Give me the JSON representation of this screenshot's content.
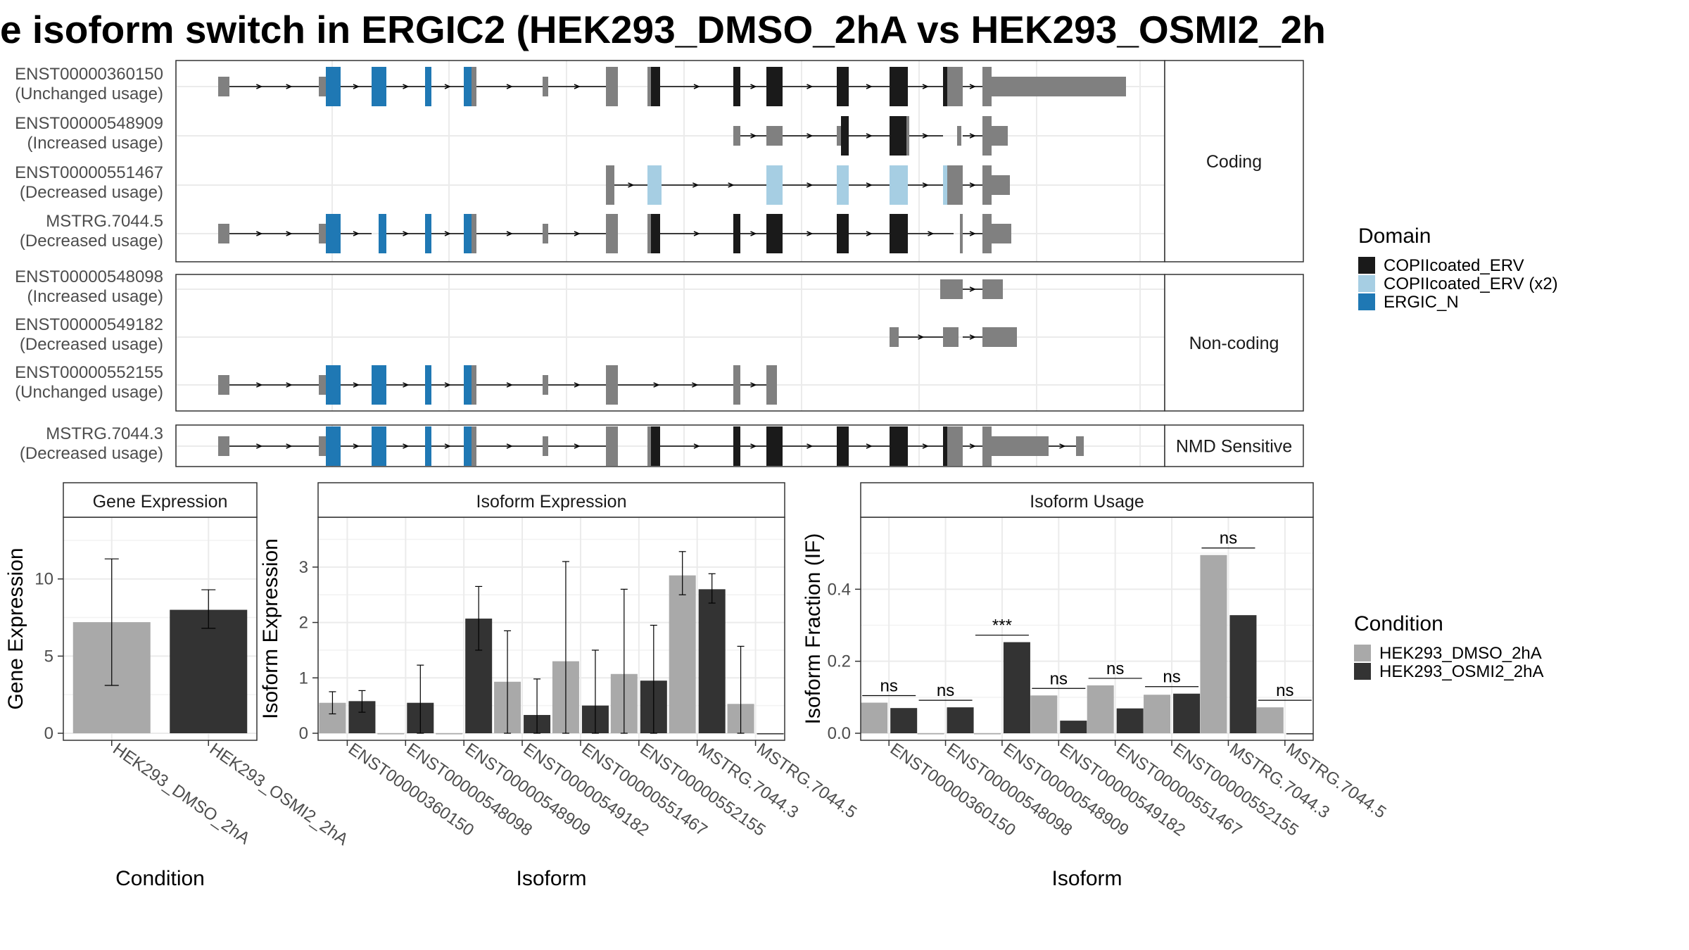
{
  "title": "e isoform switch in ERGIC2 (HEK293_DMSO_2hA vs HEK293_OSMI2_2h",
  "colors": {
    "exon": "#808080",
    "COPIIcoated_ERV": "#1a1a1a",
    "COPIIcoated_ERV_x2": "#a6cee3",
    "ERGIC_N": "#1f78b4",
    "DMSO": "#a9a9a9",
    "OSMI2": "#333333"
  },
  "structure": {
    "panels": [
      {
        "label": "Coding",
        "transcripts": [
          {
            "id": "ENST00000360150",
            "usage": "(Unchanged usage)"
          },
          {
            "id": "ENST00000548909",
            "usage": "(Increased usage)"
          },
          {
            "id": "ENST00000551467",
            "usage": "(Decreased usage)"
          },
          {
            "id": "MSTRG.7044.5",
            "usage": "(Decreased usage)"
          }
        ]
      },
      {
        "label": "Non-coding",
        "transcripts": [
          {
            "id": "ENST00000548098",
            "usage": "(Increased usage)"
          },
          {
            "id": "ENST00000549182",
            "usage": "(Decreased usage)"
          },
          {
            "id": "ENST00000552155",
            "usage": "(Unchanged usage)"
          }
        ]
      },
      {
        "label": "NMD Sensitive",
        "transcripts": [
          {
            "id": "MSTRG.7044.3",
            "usage": "(Decreased usage)"
          }
        ]
      }
    ],
    "domain_legend": {
      "title": "Domain",
      "items": [
        {
          "label": "COPIIcoated_ERV",
          "color_key": "COPIIcoated_ERV"
        },
        {
          "label": "COPIIcoated_ERV (x2)",
          "color_key": "COPIIcoated_ERV_x2"
        },
        {
          "label": "ERGIC_N",
          "color_key": "ERGIC_N"
        }
      ]
    }
  },
  "condition_legend": {
    "title": "Condition",
    "items": [
      {
        "label": "HEK293_DMSO_2hA",
        "color_key": "DMSO"
      },
      {
        "label": "HEK293_OSMI2_2hA",
        "color_key": "OSMI2"
      }
    ]
  },
  "chart_data": [
    {
      "type": "bar",
      "title": "Gene Expression",
      "xlabel": "Condition",
      "ylabel": "Gene Expression",
      "ylim": [
        0,
        14
      ],
      "yticks": [
        0,
        5,
        10
      ],
      "categories": [
        "HEK293_DMSO_2hA",
        "HEK293_OSMI2_2hA"
      ],
      "values": [
        7.2,
        8.0
      ],
      "err_low": [
        3.1,
        6.8
      ],
      "err_high": [
        11.3,
        9.3
      ]
    },
    {
      "type": "bar",
      "title": "Isoform Expression",
      "xlabel": "Isoform",
      "ylabel": "Isoform Expression",
      "ylim": [
        0,
        3.9
      ],
      "yticks": [
        0,
        1,
        2,
        3
      ],
      "categories": [
        "ENST00000360150",
        "ENST00000548098",
        "ENST00000548909",
        "ENST00000549182",
        "ENST00000551467",
        "ENST00000552155",
        "MSTRG.7044.3",
        "MSTRG.7044.5"
      ],
      "series": [
        {
          "name": "HEK293_DMSO_2hA",
          "values": [
            0.55,
            0.0,
            0.0,
            0.93,
            1.3,
            1.07,
            2.85,
            0.53
          ],
          "err_low": [
            0.35,
            null,
            null,
            0.0,
            0.0,
            0.0,
            2.5,
            0.0
          ],
          "err_high": [
            0.75,
            null,
            null,
            1.85,
            3.1,
            2.6,
            3.28,
            1.57
          ]
        },
        {
          "name": "HEK293_OSMI2_2hA",
          "values": [
            0.58,
            0.55,
            2.07,
            0.33,
            0.5,
            0.95,
            2.6,
            0.0
          ],
          "err_low": [
            0.38,
            0.0,
            1.5,
            0.0,
            0.0,
            0.0,
            2.35,
            null
          ],
          "err_high": [
            0.77,
            1.23,
            2.65,
            0.98,
            1.5,
            1.95,
            2.88,
            null
          ]
        }
      ]
    },
    {
      "type": "bar",
      "title": "Isoform Usage",
      "xlabel": "Isoform",
      "ylabel": "Isoform Fraction (IF)",
      "ylim": [
        0,
        0.6
      ],
      "yticks": [
        0.0,
        0.2,
        0.4
      ],
      "categories": [
        "ENST00000360150",
        "ENST00000548098",
        "ENST00000548909",
        "ENST00000549182",
        "ENST00000551467",
        "ENST00000552155",
        "MSTRG.7044.3",
        "MSTRG.7044.5"
      ],
      "series": [
        {
          "name": "HEK293_DMSO_2hA",
          "values": [
            0.085,
            0.0,
            0.0,
            0.105,
            0.133,
            0.107,
            0.495,
            0.072
          ]
        },
        {
          "name": "HEK293_OSMI2_2hA",
          "values": [
            0.07,
            0.072,
            0.253,
            0.035,
            0.069,
            0.11,
            0.328,
            0.0
          ]
        }
      ],
      "significance": [
        "ns",
        "ns",
        "***",
        "ns",
        "ns",
        "ns",
        "ns",
        "ns"
      ]
    }
  ]
}
